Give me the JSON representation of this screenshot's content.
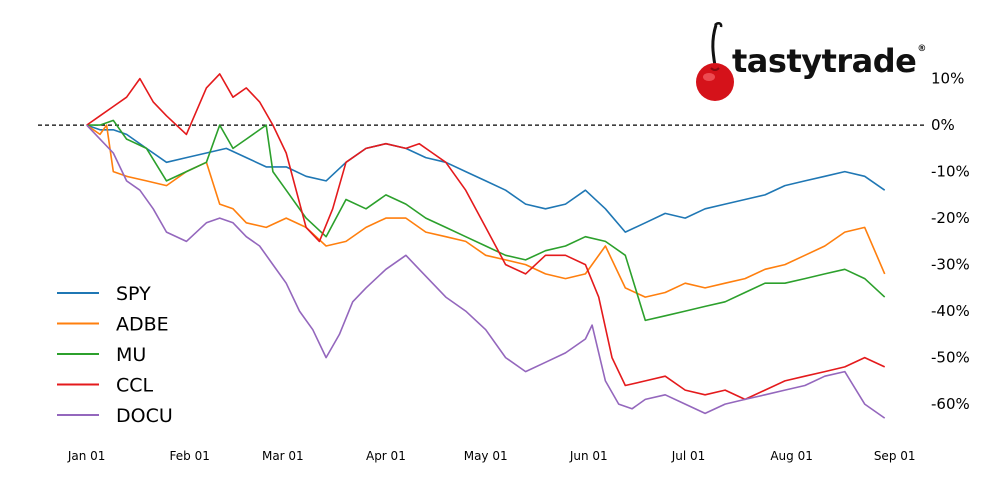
{
  "brand": {
    "name": "tastytrade",
    "registered_mark": "®"
  },
  "chart_data": {
    "type": "line",
    "yaxis": {
      "side": "right",
      "unit": "%",
      "ylim": [
        -66,
        14
      ],
      "ticks": [
        10,
        0,
        -10,
        -20,
        -30,
        -40,
        -50,
        -60
      ],
      "tick_labels": [
        "10%",
        "0%",
        "-10%",
        "-20%",
        "-30%",
        "-40%",
        "-50%",
        "-60%"
      ]
    },
    "xaxis": {
      "xlim": [
        -2,
        244
      ],
      "ticks": [
        0,
        31,
        59,
        90,
        120,
        151,
        181,
        212,
        243
      ],
      "tick_labels": [
        "Jan 01",
        "Feb 01",
        "Mar 01",
        "Apr 01",
        "May 01",
        "Jun 01",
        "Jul 01",
        "Aug 01",
        "Sep 01"
      ]
    },
    "reference_line": {
      "y": 0,
      "style": "dashed",
      "color": "#000000"
    },
    "grid": false,
    "legend": {
      "position": "bottom-left"
    },
    "series": [
      {
        "name": "SPY",
        "color": "#1f77b4",
        "x": [
          0,
          4,
          8,
          12,
          18,
          24,
          30,
          36,
          42,
          48,
          54,
          60,
          66,
          72,
          78,
          84,
          90,
          96,
          102,
          108,
          114,
          120,
          126,
          132,
          138,
          144,
          150,
          156,
          162,
          168,
          174,
          180,
          186,
          192,
          198,
          204,
          210,
          216,
          222,
          228,
          234,
          240
        ],
        "y": [
          0,
          -1,
          -1,
          -2,
          -5,
          -8,
          -7,
          -6,
          -5,
          -7,
          -9,
          -9,
          -11,
          -12,
          -8,
          -5,
          -4,
          -5,
          -7,
          -8,
          -10,
          -12,
          -14,
          -17,
          -18,
          -17,
          -14,
          -18,
          -23,
          -21,
          -19,
          -20,
          -18,
          -17,
          -16,
          -15,
          -13,
          -12,
          -11,
          -10,
          -11,
          -14
        ]
      },
      {
        "name": "ADBE",
        "color": "#ff7f0e",
        "x": [
          0,
          4,
          6,
          8,
          12,
          18,
          24,
          30,
          36,
          40,
          44,
          48,
          54,
          60,
          66,
          72,
          78,
          84,
          90,
          96,
          102,
          108,
          114,
          120,
          126,
          132,
          138,
          144,
          150,
          156,
          162,
          168,
          174,
          180,
          186,
          192,
          198,
          204,
          210,
          216,
          222,
          228,
          234,
          240
        ],
        "y": [
          0,
          -2,
          0,
          -10,
          -11,
          -12,
          -13,
          -10,
          -8,
          -17,
          -18,
          -21,
          -22,
          -20,
          -22,
          -26,
          -25,
          -22,
          -20,
          -20,
          -23,
          -24,
          -25,
          -28,
          -29,
          -30,
          -32,
          -33,
          -32,
          -26,
          -35,
          -37,
          -36,
          -34,
          -35,
          -34,
          -33,
          -31,
          -30,
          -28,
          -26,
          -23,
          -22,
          -32
        ]
      },
      {
        "name": "MU",
        "color": "#2ca02c",
        "x": [
          0,
          4,
          8,
          12,
          18,
          24,
          30,
          36,
          40,
          44,
          48,
          54,
          56,
          60,
          66,
          72,
          78,
          84,
          90,
          96,
          102,
          108,
          114,
          120,
          126,
          132,
          138,
          144,
          150,
          156,
          162,
          168,
          174,
          180,
          186,
          192,
          198,
          204,
          210,
          216,
          222,
          228,
          234,
          240
        ],
        "y": [
          0,
          0,
          1,
          -3,
          -5,
          -12,
          -10,
          -8,
          0,
          -5,
          -3,
          0,
          -10,
          -14,
          -20,
          -24,
          -16,
          -18,
          -15,
          -17,
          -20,
          -22,
          -24,
          -26,
          -28,
          -29,
          -27,
          -26,
          -24,
          -25,
          -28,
          -42,
          -41,
          -40,
          -39,
          -38,
          -36,
          -34,
          -34,
          -33,
          -32,
          -31,
          -33,
          -37
        ]
      },
      {
        "name": "CCL",
        "color": "#e41a1c",
        "x": [
          0,
          4,
          8,
          12,
          16,
          20,
          24,
          30,
          36,
          40,
          44,
          48,
          52,
          56,
          60,
          66,
          70,
          74,
          78,
          84,
          90,
          96,
          100,
          104,
          108,
          114,
          120,
          126,
          132,
          138,
          144,
          150,
          154,
          158,
          162,
          168,
          174,
          180,
          186,
          192,
          198,
          204,
          210,
          216,
          222,
          228,
          234,
          240
        ],
        "y": [
          0,
          2,
          4,
          6,
          10,
          5,
          2,
          -2,
          8,
          11,
          6,
          8,
          5,
          0,
          -6,
          -22,
          -25,
          -18,
          -8,
          -5,
          -4,
          -5,
          -4,
          -6,
          -8,
          -14,
          -22,
          -30,
          -32,
          -28,
          -28,
          -30,
          -37,
          -50,
          -56,
          -55,
          -54,
          -57,
          -58,
          -57,
          -59,
          -57,
          -55,
          -54,
          -53,
          -52,
          -50,
          -52
        ]
      },
      {
        "name": "DOCU",
        "color": "#9467bd",
        "x": [
          0,
          4,
          8,
          12,
          16,
          20,
          24,
          30,
          36,
          40,
          44,
          48,
          52,
          56,
          60,
          64,
          68,
          72,
          76,
          80,
          84,
          90,
          96,
          100,
          104,
          108,
          114,
          120,
          126,
          132,
          138,
          144,
          150,
          152,
          156,
          160,
          164,
          168,
          174,
          180,
          186,
          192,
          198,
          204,
          210,
          216,
          222,
          228,
          234,
          240
        ],
        "y": [
          0,
          -3,
          -6,
          -12,
          -14,
          -18,
          -23,
          -25,
          -21,
          -20,
          -21,
          -24,
          -26,
          -30,
          -34,
          -40,
          -44,
          -50,
          -45,
          -38,
          -35,
          -31,
          -28,
          -31,
          -34,
          -37,
          -40,
          -44,
          -50,
          -53,
          -51,
          -49,
          -46,
          -43,
          -55,
          -60,
          -61,
          -59,
          -58,
          -60,
          -62,
          -60,
          -59,
          -58,
          -57,
          -56,
          -54,
          -53,
          -60,
          -63
        ]
      }
    ]
  }
}
